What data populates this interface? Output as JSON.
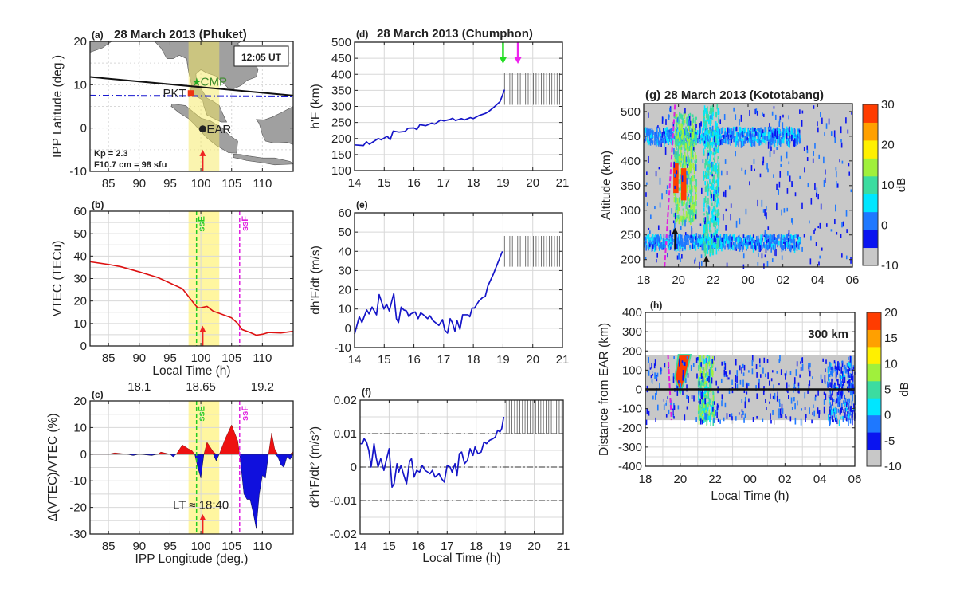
{
  "colors": {
    "vtec": "#dd1111",
    "positive": "#ee1111",
    "negative": "#1010dd",
    "line": "#1515c8",
    "ssE": "#22cc22",
    "ssF": "#e020e0",
    "band": "#fff6a0",
    "land": "#a0a0a0",
    "no_data": "#c8c8c8"
  },
  "colormap": [
    "#c8c8c8",
    "#0a14f0",
    "#1e78ff",
    "#00e6ff",
    "#3cdca0",
    "#a0f03c",
    "#fff000",
    "#ffa000",
    "#ff3c00"
  ],
  "chart_data": [
    {
      "panel": "(a)",
      "type": "scatter",
      "title": "28 March 2013 (Phuket)",
      "ylabel": "IPP Latitude (deg.)",
      "xlim": [
        82,
        115
      ],
      "ylim": [
        -10,
        20
      ],
      "xticks": [
        85,
        90,
        95,
        100,
        105,
        110
      ],
      "yticks": [
        20,
        10,
        0,
        -10
      ],
      "time_label": "12:05 UT",
      "kp": "Kp = 2.3",
      "f107": "F10.7 cm = 98 sfu",
      "highlight_band": [
        98,
        103
      ],
      "stations": [
        {
          "name": "CMP",
          "lon": 99.3,
          "lat": 10.7,
          "marker": "star",
          "color": "#22aa22"
        },
        {
          "name": "PKT",
          "lon": 98.4,
          "lat": 8.0,
          "marker": "square",
          "color": "#ee3311"
        },
        {
          "name": "EAR",
          "lon": 100.3,
          "lat": -0.2,
          "marker": "circle",
          "color": "#222222"
        }
      ],
      "magnetic_equator_line": [
        [
          82,
          11.8
        ],
        [
          115,
          7.5
        ]
      ],
      "pkt_latitude_line": [
        [
          82,
          7.5
        ],
        [
          115,
          7.3
        ]
      ],
      "arrow_lon": 100.3
    },
    {
      "panel": "(b)",
      "type": "line",
      "ylabel": "VTEC (TECu)",
      "xlabel": "Local Time (h)",
      "xlim": [
        82,
        115
      ],
      "ylim": [
        0,
        60
      ],
      "xticks": [
        85,
        90,
        95,
        100,
        105,
        110
      ],
      "yticks": [
        60,
        50,
        40,
        30,
        20,
        10,
        0
      ],
      "highlight_band": [
        98,
        103
      ],
      "markers": [
        {
          "label": "ssE",
          "x": 99.3
        },
        {
          "label": "ssF",
          "x": 106.3
        }
      ],
      "arrow_x": 100.3,
      "x": [
        82,
        85,
        87,
        90,
        93,
        95,
        97,
        98,
        99,
        99.5,
        100,
        101,
        102,
        103,
        105,
        106,
        106.7,
        108,
        109,
        110,
        111,
        113,
        115
      ],
      "y": [
        37.5,
        36.3,
        35.3,
        33,
        30.5,
        28,
        25.5,
        22,
        18.5,
        17,
        17,
        17.6,
        15.5,
        14.5,
        12.5,
        10,
        7.3,
        6,
        4.8,
        5.2,
        6,
        5.8,
        6.5
      ]
    },
    {
      "panel": "(c)",
      "type": "area",
      "ylabel": "Δ(VTEC)/VTEC (%)",
      "xlabel": "IPP Longitude (deg.)",
      "xlim": [
        82,
        115
      ],
      "ylim": [
        -30,
        20
      ],
      "xticks": [
        85,
        90,
        95,
        100,
        105,
        110
      ],
      "yticks": [
        20,
        10,
        0,
        -10,
        -20,
        -30
      ],
      "top_axis": {
        "ticks_lon": [
          90,
          100,
          110
        ],
        "labels": [
          "18.1",
          "18.65",
          "19.2"
        ]
      },
      "highlight_band": [
        98,
        103
      ],
      "markers": [
        {
          "label": "ssE",
          "x": 99.3
        },
        {
          "label": "ssF",
          "x": 106.3
        }
      ],
      "arrow_x": 100.3,
      "annotation": "LT ≈ 18:40",
      "x": [
        82,
        85,
        86,
        88,
        89,
        90,
        92,
        93,
        93.5,
        95,
        95.5,
        96,
        97,
        98,
        98.5,
        99,
        99.5,
        100,
        100.5,
        101,
        102,
        102.5,
        103,
        104,
        105,
        106,
        106.3,
        107,
        107.5,
        108,
        108.5,
        109,
        109.5,
        110,
        110.5,
        111,
        111.5,
        112,
        112.5,
        113,
        113.5,
        114,
        114.5,
        115
      ],
      "y": [
        0,
        0,
        0.5,
        0,
        -0.5,
        0,
        -0.5,
        0,
        0.8,
        0,
        -1,
        0,
        3.5,
        2,
        1.5,
        0,
        -5,
        -9,
        0,
        4.5,
        1,
        -2.5,
        0,
        6,
        11,
        5,
        0,
        -15,
        -17,
        -17,
        -22,
        -28,
        -15,
        -8,
        -9,
        0,
        8,
        2,
        -1,
        -4,
        -5,
        -1,
        -2,
        1
      ]
    },
    {
      "panel": "(d)",
      "type": "line",
      "title": "28 March 2013 (Chumphon)",
      "ylabel": "h'F (km)",
      "xlim": [
        14,
        21
      ],
      "ylim": [
        100,
        500
      ],
      "xticks": [
        14,
        15,
        16,
        17,
        18,
        19,
        20,
        21
      ],
      "yticks": [
        500,
        450,
        400,
        350,
        300,
        250,
        200,
        150,
        100
      ],
      "hatched_region": {
        "x": [
          19.05,
          21
        ],
        "y": [
          305,
          405
        ]
      },
      "arrows": [
        {
          "x": 19.0,
          "color": "#22dd22"
        },
        {
          "x": 19.5,
          "color": "#ee22ee"
        }
      ],
      "x": [
        14,
        14.3,
        14.4,
        14.5,
        14.8,
        14.9,
        15.1,
        15.2,
        15.3,
        15.5,
        15.7,
        15.8,
        16,
        16.1,
        16.2,
        16.4,
        16.6,
        16.7,
        16.9,
        17,
        17.2,
        17.3,
        17.4,
        17.6,
        17.7,
        17.9,
        18,
        18.2,
        18.4,
        18.5,
        18.7,
        18.9,
        19.05
      ],
      "y": [
        180,
        178,
        190,
        182,
        200,
        196,
        207,
        196,
        223,
        220,
        222,
        232,
        233,
        228,
        243,
        240,
        248,
        245,
        258,
        255,
        259,
        263,
        256,
        262,
        258,
        265,
        262,
        272,
        278,
        283,
        298,
        315,
        352
      ]
    },
    {
      "panel": "(e)",
      "type": "line",
      "ylabel": "dh'F/dt (m/s)",
      "xlim": [
        14,
        21
      ],
      "ylim": [
        -10,
        60
      ],
      "xticks": [
        14,
        15,
        16,
        17,
        18,
        19,
        20,
        21
      ],
      "yticks": [
        60,
        50,
        40,
        30,
        20,
        10,
        0,
        -10
      ],
      "hatched_region": {
        "x": [
          19.05,
          21
        ],
        "y": [
          32,
          48
        ]
      },
      "x": [
        14,
        14.16,
        14.25,
        14.41,
        14.49,
        14.59,
        14.74,
        14.83,
        14.99,
        15.08,
        15.17,
        15.32,
        15.41,
        15.48,
        15.57,
        15.66,
        15.75,
        15.83,
        15.9,
        16.04,
        16.14,
        16.23,
        16.32,
        16.46,
        16.54,
        16.64,
        16.84,
        16.96,
        17.04,
        17.13,
        17.22,
        17.29,
        17.38,
        17.45,
        17.55,
        17.64,
        17.82,
        17.88,
        17.96,
        18.04,
        18.18,
        18.31,
        18.4,
        18.49,
        18.67,
        18.85,
        18.98
      ],
      "y": [
        -3,
        6,
        3,
        9.5,
        7.5,
        11,
        7,
        17.5,
        10,
        12.5,
        9,
        18,
        5,
        3,
        11,
        9.5,
        9,
        6,
        7.5,
        8.5,
        5,
        8,
        7,
        5,
        6.5,
        4,
        1.5,
        4.5,
        -1,
        -2.5,
        5,
        3,
        -1.5,
        4,
        -0.5,
        7,
        7,
        6,
        10.5,
        10.5,
        14,
        16,
        16.5,
        22,
        28,
        35,
        40
      ]
    },
    {
      "panel": "(f)",
      "type": "line",
      "ylabel": "d²h'F/dt² (m/s²)",
      "xlabel": "Local Time (h)",
      "xlim": [
        14,
        21
      ],
      "ylim": [
        -0.02,
        0.02
      ],
      "xticks": [
        14,
        15,
        16,
        17,
        18,
        19,
        20,
        21
      ],
      "yticks": [
        "0.02",
        "0.01",
        "0",
        "-0.01",
        "-0.02"
      ],
      "reference_lines": [
        0.01,
        0,
        -0.01
      ],
      "hatched_region": {
        "x": [
          19.05,
          21
        ],
        "y": [
          0.01,
          0.02
        ]
      },
      "x": [
        14,
        14.08,
        14.14,
        14.22,
        14.3,
        14.38,
        14.48,
        14.55,
        14.62,
        14.71,
        14.82,
        14.9,
        15,
        15.1,
        15.17,
        15.27,
        15.33,
        15.41,
        15.49,
        15.6,
        15.7,
        15.77,
        15.86,
        15.95,
        16.05,
        16.14,
        16.24,
        16.33,
        16.41,
        16.49,
        16.58,
        16.72,
        16.81,
        16.9,
        17,
        17.1,
        17.17,
        17.27,
        17.34,
        17.42,
        17.5,
        17.6,
        17.7,
        17.79,
        17.89,
        17.96,
        18.06,
        18.17,
        18.27,
        18.36,
        18.46,
        18.58,
        18.66,
        18.74,
        18.82,
        18.88,
        18.95
      ],
      "y": [
        0.007,
        0.007,
        0.0085,
        0.0075,
        0.005,
        0,
        0.007,
        0.003,
        0,
        0.0025,
        -0.001,
        0.002,
        0.0055,
        -0.006,
        -0.005,
        0.001,
        -0.0015,
        0.0005,
        -0.002,
        -0.005,
        0.0015,
        0.0025,
        -0.003,
        -0.001,
        -0.0015,
        0.0005,
        -0.001,
        -0.0015,
        -0.002,
        -0.001,
        -0.003,
        -0.002,
        -0.0035,
        -0.0045,
        0.0005,
        0,
        -0.0015,
        0.001,
        -0.0025,
        0.004,
        0.0045,
        0.001,
        0.002,
        0.0055,
        0.0035,
        0.006,
        0.004,
        0.0045,
        0.0075,
        0.007,
        0.008,
        0.0085,
        0.009,
        0.011,
        0.0105,
        0.0115,
        0.015
      ]
    },
    {
      "panel": "(g)",
      "type": "heatmap",
      "title": "28 March 2013 (Kototabang)",
      "ylabel": "Altitude (km)",
      "xlim": [
        "18",
        "06"
      ],
      "ylim": [
        185,
        516
      ],
      "xtick_labels": [
        "18",
        "20",
        "22",
        "00",
        "02",
        "04",
        "06"
      ],
      "yticks": [
        500,
        450,
        400,
        350,
        300,
        250,
        200
      ],
      "colorbar": {
        "range": [
          -10,
          30
        ],
        "ticks": [
          30,
          20,
          10,
          0,
          -10
        ],
        "label": "dB"
      }
    },
    {
      "panel": "(h)",
      "type": "heatmap",
      "ylabel": "Distance from EAR (km)",
      "xlabel": "Local Time (h)",
      "annotation": "300 km",
      "xlim": [
        "18",
        "06"
      ],
      "ylim": [
        -400,
        400
      ],
      "xtick_labels": [
        "18",
        "20",
        "22",
        "00",
        "02",
        "04",
        "06"
      ],
      "yticks": [
        400,
        300,
        200,
        100,
        0,
        -100,
        -200,
        -300,
        -400
      ],
      "data_coverage_km": [
        -160,
        180
      ],
      "colorbar": {
        "range": [
          -10,
          20
        ],
        "ticks": [
          20,
          15,
          10,
          5,
          0,
          -5,
          -10
        ],
        "label": "dB"
      }
    }
  ]
}
